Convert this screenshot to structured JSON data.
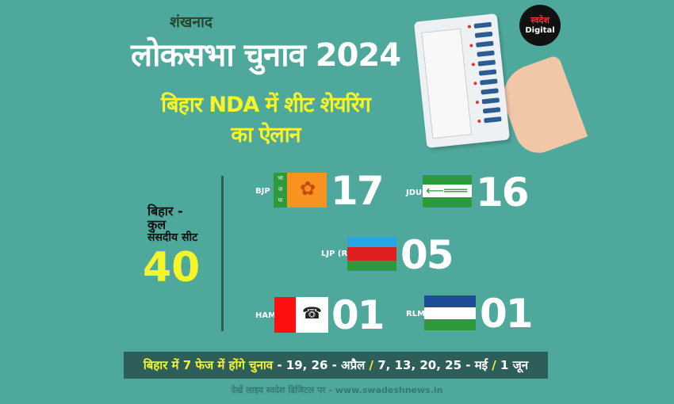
{
  "header": {
    "kicker": "शंखनाद",
    "title": "लोकसभा चुनाव 2024",
    "subtitle_line1": "बिहार NDA में शीट शेयरिंग",
    "subtitle_line2": "का ऐलान"
  },
  "logo": {
    "brand": "स्वदेश",
    "name": "Digital"
  },
  "total": {
    "line1": "बिहार -",
    "line2": "कुल",
    "line3": "संसदीय सीट",
    "value": "40"
  },
  "parties": [
    {
      "label": "BJP",
      "seats": "17",
      "flag_text": [
        "भा",
        "ज",
        "पा"
      ],
      "colors": [
        "#2e9a3c",
        "#f7931e"
      ]
    },
    {
      "label": "JDU",
      "seats": "16",
      "colors": [
        "#2e9a3c",
        "#ffffff"
      ]
    },
    {
      "label": "LJP (R)",
      "seats": "05",
      "colors": [
        "#27a6e6",
        "#e02020",
        "#2e9a3c"
      ]
    },
    {
      "label": "HAM",
      "seats": "01",
      "colors": [
        "#ff1010",
        "#ffffff"
      ]
    },
    {
      "label": "RLM",
      "seats": "01",
      "colors": [
        "#1c4d96",
        "#ffffff",
        "#2e9a3c"
      ]
    }
  ],
  "schedule": {
    "highlight": "बिहार में 7 फेज में होंगे चुनाव",
    "part1": " - 19, 26 - अप्रैल ",
    "sep": "/",
    "part2": " 7, 13, 20, 25 - मई ",
    "part3": " 1 जून"
  },
  "footer": "देखें लाइव स्वदेश डिजिटल पर - www.swadeshnews.in",
  "colors": {
    "background": "#4fa89c",
    "accent_yellow": "#f5f52a",
    "bar": "#2d5e5a"
  }
}
